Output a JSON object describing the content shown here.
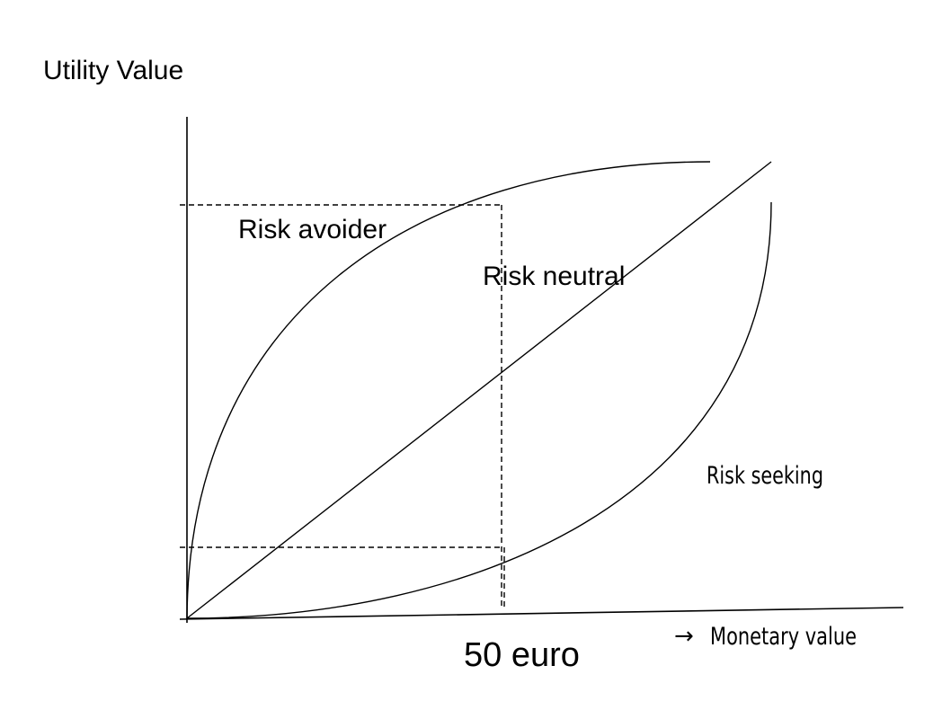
{
  "diagram": {
    "y_axis_label": "Utility Value",
    "x_axis_label": "Monetary value",
    "x_axis_arrow": "→",
    "x_marker_label": "50 euro",
    "curves": {
      "risk_avoider": "Risk avoider",
      "risk_neutral": "Risk neutral",
      "risk_seeking": "Risk seeking"
    },
    "colors": {
      "line": "#000000",
      "background": "#ffffff"
    }
  }
}
